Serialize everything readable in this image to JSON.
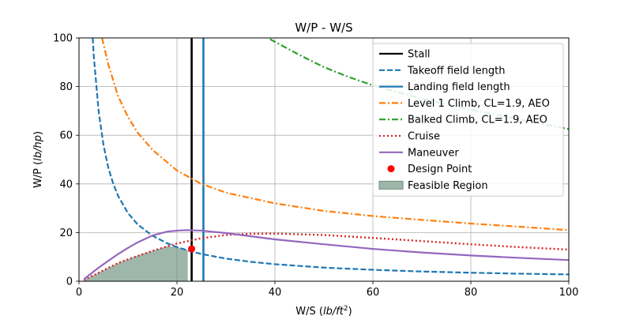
{
  "chart_data": {
    "type": "line",
    "title": "W/P - W/S",
    "xlabel_main": "W/S (",
    "xlabel_unit_base": "lb/ft",
    "xlabel_unit_exp": "2",
    "xlabel_close": ")",
    "ylabel_main": "W/P (",
    "ylabel_unit": "lb/hp",
    "ylabel_close": ")",
    "xlim": [
      0,
      100
    ],
    "ylim": [
      0,
      100
    ],
    "xticks": [
      "0",
      "20",
      "40",
      "60",
      "80",
      "100"
    ],
    "yticks": [
      "0",
      "20",
      "40",
      "60",
      "80",
      "100"
    ],
    "grid": true,
    "legend_position": "top-right",
    "series": [
      {
        "name": "Stall",
        "kind": "vline",
        "x_value": 23,
        "color": "#000000",
        "dash": "solid"
      },
      {
        "name": "Takeoff field length",
        "kind": "curve",
        "color": "#1f77b4",
        "dash": "dashed",
        "x": [
          2.8,
          3,
          4,
          5,
          6,
          7,
          8,
          10,
          12,
          15,
          18,
          20,
          23,
          25,
          30,
          35,
          40,
          50,
          60,
          70,
          80,
          90,
          100
        ],
        "y": [
          100,
          93,
          70,
          56,
          46.5,
          40,
          35,
          28,
          23.3,
          18.7,
          15.6,
          14,
          12.2,
          11.2,
          9.3,
          8,
          7,
          5.6,
          4.7,
          4,
          3.5,
          3.1,
          2.8
        ]
      },
      {
        "name": "Landing field length",
        "kind": "vline",
        "x_value": 25.4,
        "color": "#1f77b4",
        "dash": "solid"
      },
      {
        "name": "Level 1 Climb, CL=1.9, AEO",
        "kind": "curve",
        "color": "#ff7f0e",
        "dash": "dashdot",
        "x": [
          4.7,
          6,
          8,
          10,
          12,
          15,
          20,
          25,
          30,
          40,
          50,
          60,
          70,
          80,
          90,
          100
        ],
        "y": [
          100,
          89,
          76,
          67.5,
          61,
          54,
          45.5,
          40,
          36.4,
          32,
          28.9,
          26.8,
          25.2,
          23.7,
          22.4,
          21
        ]
      },
      {
        "name": "Balked Climb, CL=1.9, AEO",
        "kind": "curve",
        "color": "#2ca02c",
        "dash": "dashdot",
        "x": [
          39,
          45,
          50,
          55,
          60,
          70,
          80,
          90,
          100
        ],
        "y": [
          99.5,
          93,
          88,
          84,
          80.5,
          75,
          70.5,
          66.5,
          62.5
        ]
      },
      {
        "name": "Cruise",
        "kind": "curve",
        "color": "#d62728",
        "dash": "dotted",
        "x": [
          1,
          3,
          5,
          8,
          10,
          15,
          20,
          25,
          30,
          35,
          40,
          50,
          60,
          70,
          80,
          90,
          100
        ],
        "y": [
          0.5,
          2.5,
          4.5,
          7.5,
          9,
          12.5,
          15.5,
          17.7,
          19,
          19.5,
          19.6,
          19,
          17.8,
          16.5,
          15.2,
          14,
          13
        ]
      },
      {
        "name": "Maneuver",
        "kind": "curve",
        "color": "#9467bd",
        "dash": "solid",
        "x": [
          1,
          3,
          5,
          8,
          10,
          12,
          15,
          18,
          20,
          22,
          25,
          30,
          35,
          40,
          50,
          60,
          70,
          80,
          90,
          100
        ],
        "y": [
          0.8,
          4,
          7,
          11.2,
          13.7,
          16,
          18.8,
          20.4,
          20.8,
          21,
          20.8,
          19.8,
          18.5,
          17.2,
          15.2,
          13.3,
          11.8,
          10.6,
          9.6,
          8.7
        ]
      },
      {
        "name": "Design Point",
        "kind": "point",
        "color": "#ff0000",
        "x": [
          23
        ],
        "y": [
          13.3
        ]
      },
      {
        "name": "Feasible Region",
        "kind": "region",
        "color": "#6b8f7c",
        "x": [
          1,
          3,
          5,
          8,
          10,
          12,
          15,
          18,
          20,
          22.2
        ],
        "y": [
          0.5,
          2.5,
          4.5,
          7.5,
          9,
          10.6,
          12.5,
          14.4,
          14,
          12.8
        ]
      }
    ]
  }
}
